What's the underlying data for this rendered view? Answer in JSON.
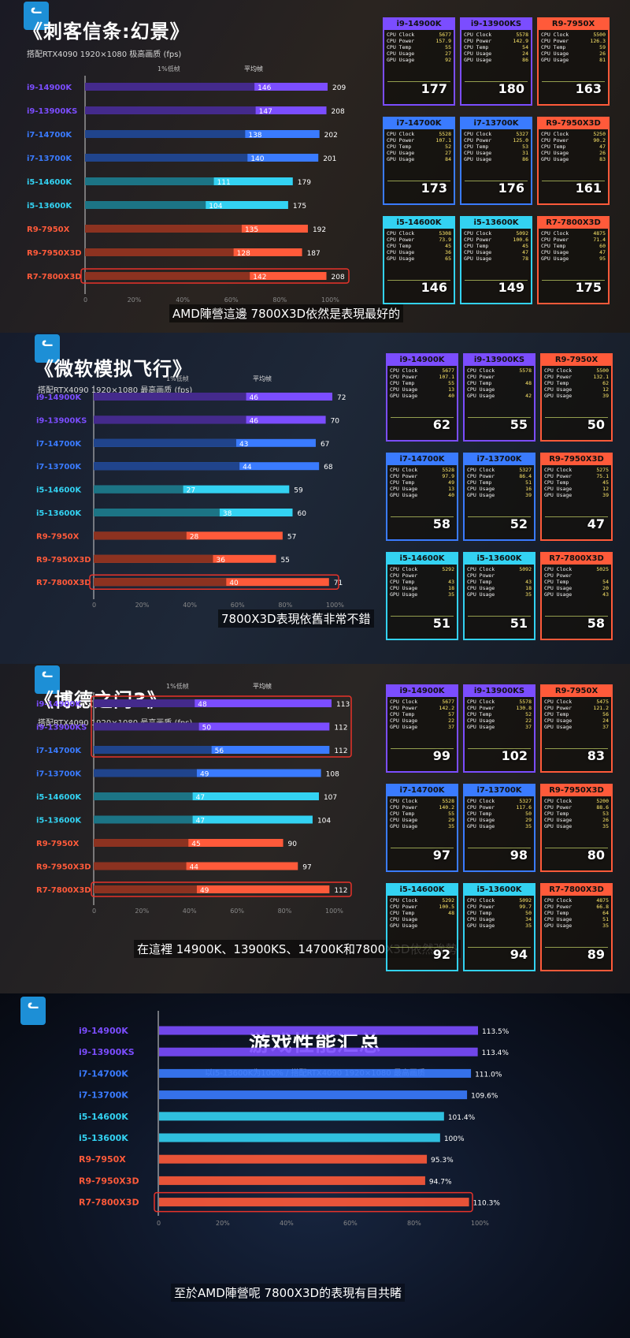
{
  "panels": [
    {
      "title": "《刺客信条:幻景》",
      "subtitle": "搭配RTX4090 1920×1080 极高画质 (fps)",
      "legend_low": "1%低帧",
      "legend_avg": "平均帧",
      "caption": "AMD陣營這邊 7800X3D依然是表現最好的",
      "cards": [
        {
          "cpu": "i9-14900K",
          "clock": "5677",
          "power": "157.9",
          "temp": "55",
          "cpu_usage": "27",
          "gpu_usage": "92",
          "fps": "177"
        },
        {
          "cpu": "i9-13900KS",
          "clock": "5578",
          "power": "142.9",
          "temp": "54",
          "cpu_usage": "24",
          "gpu_usage": "86",
          "fps": "180"
        },
        {
          "cpu": "R9-7950X",
          "clock": "5500",
          "power": "126.3",
          "temp": "59",
          "cpu_usage": "26",
          "gpu_usage": "81",
          "fps": "163"
        },
        {
          "cpu": "i7-14700K",
          "clock": "5528",
          "power": "107.1",
          "temp": "52",
          "cpu_usage": "27",
          "gpu_usage": "84",
          "fps": "173"
        },
        {
          "cpu": "i7-13700K",
          "clock": "5327",
          "power": "125.0",
          "temp": "53",
          "cpu_usage": "31",
          "gpu_usage": "86",
          "fps": "176"
        },
        {
          "cpu": "R9-7950X3D",
          "clock": "5250",
          "power": "90.2",
          "temp": "47",
          "cpu_usage": "26",
          "gpu_usage": "83",
          "fps": "161"
        },
        {
          "cpu": "i5-14600K",
          "clock": "5308",
          "power": "73.9",
          "temp": "45",
          "cpu_usage": "36",
          "gpu_usage": "65",
          "fps": "146"
        },
        {
          "cpu": "i5-13600K",
          "clock": "5092",
          "power": "100.6",
          "temp": "45",
          "cpu_usage": "47",
          "gpu_usage": "78",
          "fps": "149"
        },
        {
          "cpu": "R7-7800X3D",
          "clock": "4875",
          "power": "71.4",
          "temp": "60",
          "cpu_usage": "47",
          "gpu_usage": "95",
          "fps": "175"
        }
      ]
    },
    {
      "title": "《微软模拟飞行》",
      "subtitle": "搭配RTX4090 1920×1080 最高画质 (fps)",
      "legend_low": "1%低帧",
      "legend_avg": "平均帧",
      "caption": "7800X3D表現依舊非常不錯",
      "cards": [
        {
          "cpu": "i9-14900K",
          "clock": "5677",
          "power": "107.1",
          "temp": "55",
          "cpu_usage": "13",
          "gpu_usage": "40",
          "fps": "62"
        },
        {
          "cpu": "i9-13900KS",
          "clock": "5578",
          "power": "",
          "temp": "48",
          "cpu_usage": "",
          "gpu_usage": "42",
          "fps": "55"
        },
        {
          "cpu": "R9-7950X",
          "clock": "5500",
          "power": "132.1",
          "temp": "62",
          "cpu_usage": "12",
          "gpu_usage": "39",
          "fps": "50"
        },
        {
          "cpu": "i7-14700K",
          "clock": "5528",
          "power": "97.9",
          "temp": "49",
          "cpu_usage": "13",
          "gpu_usage": "40",
          "fps": "58"
        },
        {
          "cpu": "i7-13700K",
          "clock": "5327",
          "power": "86.4",
          "temp": "51",
          "cpu_usage": "16",
          "gpu_usage": "39",
          "fps": "52"
        },
        {
          "cpu": "R9-7950X3D",
          "clock": "5275",
          "power": "75.1",
          "temp": "45",
          "cpu_usage": "12",
          "gpu_usage": "39",
          "fps": "47"
        },
        {
          "cpu": "i5-14600K",
          "clock": "5292",
          "power": "",
          "temp": "43",
          "cpu_usage": "18",
          "gpu_usage": "35",
          "fps": "51"
        },
        {
          "cpu": "i5-13600K",
          "clock": "5092",
          "power": "",
          "temp": "43",
          "cpu_usage": "18",
          "gpu_usage": "35",
          "fps": "51"
        },
        {
          "cpu": "R7-7800X3D",
          "clock": "5025",
          "power": "",
          "temp": "54",
          "cpu_usage": "20",
          "gpu_usage": "43",
          "fps": "58"
        }
      ]
    },
    {
      "title": "《博德之门3》",
      "subtitle": "搭配RTX4090 1920×1080 最高画质 (fps)",
      "legend_low": "1%低帧",
      "legend_avg": "平均帧",
      "caption": "在這裡 14900K、13900KS、14700K和7800X3D依然強勢",
      "cards": [
        {
          "cpu": "i9-14900K",
          "clock": "5677",
          "power": "142.2",
          "temp": "57",
          "cpu_usage": "22",
          "gpu_usage": "37",
          "fps": "99"
        },
        {
          "cpu": "i9-13900KS",
          "clock": "5578",
          "power": "130.8",
          "temp": "52",
          "cpu_usage": "22",
          "gpu_usage": "37",
          "fps": "102"
        },
        {
          "cpu": "R9-7950X",
          "clock": "5475",
          "power": "121.2",
          "temp": "56",
          "cpu_usage": "24",
          "gpu_usage": "37",
          "fps": "83"
        },
        {
          "cpu": "i7-14700K",
          "clock": "5528",
          "power": "140.2",
          "temp": "55",
          "cpu_usage": "29",
          "gpu_usage": "35",
          "fps": "97"
        },
        {
          "cpu": "i7-13700K",
          "clock": "5327",
          "power": "117.6",
          "temp": "50",
          "cpu_usage": "29",
          "gpu_usage": "35",
          "fps": "98"
        },
        {
          "cpu": "R9-7950X3D",
          "clock": "5200",
          "power": "88.6",
          "temp": "53",
          "cpu_usage": "26",
          "gpu_usage": "35",
          "fps": "80"
        },
        {
          "cpu": "i5-14600K",
          "clock": "5292",
          "power": "100.5",
          "temp": "48",
          "cpu_usage": "",
          "gpu_usage": "",
          "fps": "92"
        },
        {
          "cpu": "i5-13600K",
          "clock": "5092",
          "power": "99.7",
          "temp": "50",
          "cpu_usage": "34",
          "gpu_usage": "35",
          "fps": "94"
        },
        {
          "cpu": "R7-7800X3D",
          "clock": "4875",
          "power": "66.8",
          "temp": "64",
          "cpu_usage": "51",
          "gpu_usage": "35",
          "fps": "89"
        }
      ]
    },
    {
      "title": "游戏性能汇总",
      "subtitle": "以i5-13600K为100% / 搭配RTX4090 1920×1080 最高画质",
      "caption": "至於AMD陣營呢 7800X3D的表現有目共睹"
    }
  ],
  "card_labels": {
    "clock": "CPU Clock",
    "power": "CPU Power",
    "temp": "CPU Temp",
    "cpu_usage": "CPU Usage",
    "gpu_usage": "GPU Usage"
  },
  "colors": {
    "i9": "#7b4dff",
    "i7": "#3a7bff",
    "i5": "#33d2f2",
    "amd": "#ff5a3a"
  },
  "chart_data": [
    {
      "type": "bar",
      "categories": [
        "i9-14900K",
        "i9-13900KS",
        "i7-14700K",
        "i7-13700K",
        "i5-14600K",
        "i5-13600K",
        "R9-7950X",
        "R9-7950X3D",
        "R7-7800X3D"
      ],
      "series": [
        {
          "name": "1%低帧",
          "values": [
            146,
            147,
            138,
            140,
            111,
            104,
            135,
            128,
            142
          ]
        },
        {
          "name": "平均帧",
          "values": [
            209,
            208,
            202,
            201,
            179,
            175,
            192,
            187,
            208
          ]
        }
      ],
      "xmax": 209,
      "xticks": [
        "0",
        "20%",
        "40%",
        "60%",
        "80%",
        "100%"
      ]
    },
    {
      "type": "bar",
      "categories": [
        "i9-14900K",
        "i9-13900KS",
        "i7-14700K",
        "i7-13700K",
        "i5-14600K",
        "i5-13600K",
        "R9-7950X",
        "R9-7950X3D",
        "R7-7800X3D"
      ],
      "series": [
        {
          "name": "1%低帧",
          "values": [
            46,
            46,
            43,
            44,
            27,
            38,
            28,
            36,
            40
          ]
        },
        {
          "name": "平均帧",
          "values": [
            72,
            70,
            67,
            68,
            59,
            60,
            57,
            55,
            71
          ]
        }
      ],
      "xmax": 72,
      "xticks": [
        "0",
        "20%",
        "40%",
        "60%",
        "80%",
        "100%"
      ]
    },
    {
      "type": "bar",
      "categories": [
        "i9-14900K",
        "i9-13900KS",
        "i7-14700K",
        "i7-13700K",
        "i5-14600K",
        "i5-13600K",
        "R9-7950X",
        "R9-7950X3D",
        "R7-7800X3D"
      ],
      "series": [
        {
          "name": "1%低帧",
          "values": [
            48,
            50,
            56,
            49,
            47,
            47,
            45,
            44,
            49
          ]
        },
        {
          "name": "平均帧",
          "values": [
            113,
            112,
            112,
            108,
            107,
            104,
            90,
            97,
            112
          ]
        }
      ],
      "xmax": 113,
      "xticks": [
        "0",
        "20%",
        "40%",
        "60%",
        "80%",
        "100%"
      ]
    },
    {
      "type": "bar",
      "categories": [
        "i9-14900K",
        "i9-13900KS",
        "i7-14700K",
        "i7-13700K",
        "i5-14600K",
        "i5-13600K",
        "R9-7950X",
        "R9-7950X3D",
        "R7-7800X3D"
      ],
      "values": [
        113.5,
        113.4,
        111.0,
        109.6,
        101.4,
        100,
        95.3,
        94.7,
        110.3
      ],
      "value_labels": [
        "113.5%",
        "113.4%",
        "111.0%",
        "109.6%",
        "101.4%",
        "100%",
        "95.3%",
        "94.7%",
        "110.3%"
      ],
      "xmax": 113.5,
      "xticks": [
        "0",
        "20%",
        "40%",
        "60%",
        "80%",
        "100%"
      ]
    }
  ]
}
